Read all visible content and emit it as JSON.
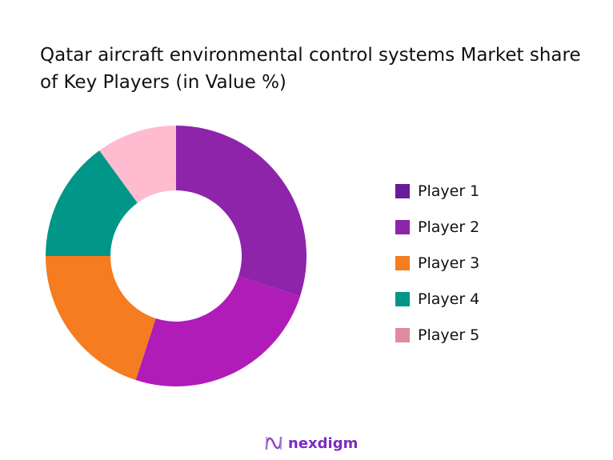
{
  "chart_data": {
    "type": "pie",
    "variant": "donut",
    "title": "Qatar aircraft environmental control systems Market share of Key Players (in Value %)",
    "categories": [
      "Player 1",
      "Player 2",
      "Player 3",
      "Player 4",
      "Player 5"
    ],
    "values": [
      30,
      25,
      20,
      15,
      10
    ],
    "slice_colors": [
      "#8E24AA",
      "#B01CB8",
      "#F57C20",
      "#009688",
      "#FFBBD0"
    ],
    "legend_colors": [
      "#6A1B9A",
      "#8E24AA",
      "#F57C20",
      "#009688",
      "#E08AA0"
    ],
    "legend_position": "right"
  },
  "brand": {
    "name": "nexdigm",
    "color": "#7B2CBF"
  }
}
